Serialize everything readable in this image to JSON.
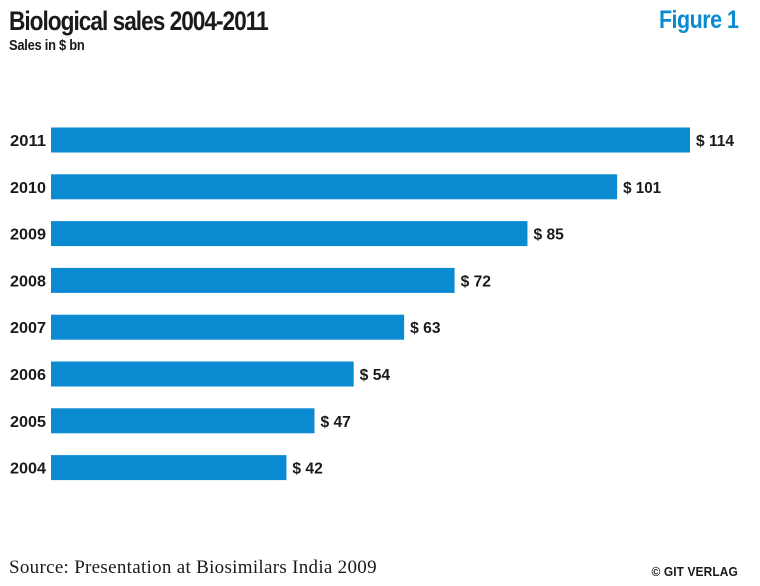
{
  "header": {
    "title": "Biological sales 2004-2011",
    "subtitle": "Sales in $ bn",
    "figure_label": "Figure 1"
  },
  "footer": {
    "source": "Source: Presentation at Biosimilars India 2009",
    "copyright": "© GIT VERLAG"
  },
  "colors": {
    "bar": "#0a8ad0",
    "figure_label": "#0a8ad0",
    "text": "#1a1a1a"
  },
  "chart_data": {
    "type": "bar",
    "orientation": "horizontal",
    "title": "Biological sales 2004-2011",
    "subtitle": "Sales in $ bn",
    "categories": [
      "2011",
      "2010",
      "2009",
      "2008",
      "2007",
      "2006",
      "2005",
      "2004"
    ],
    "values": [
      114,
      101,
      85,
      72,
      63,
      54,
      47,
      42
    ],
    "value_labels": [
      "$ 114",
      "$ 101",
      "$ 85",
      "$ 72",
      "$ 63",
      "$ 54",
      "$ 47",
      "$ 42"
    ],
    "unit": "$ bn",
    "xlim": [
      0,
      114
    ],
    "grid": false,
    "legend": "none"
  }
}
